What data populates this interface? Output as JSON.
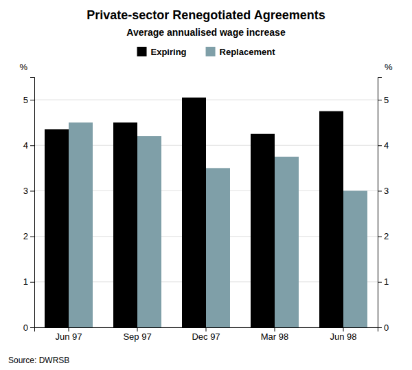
{
  "chart_data": {
    "type": "bar",
    "title": "Private-sector Renegotiated Agreements",
    "subtitle": "Average annualised wage increase",
    "source": "Source: DWRSB",
    "ylabel": "%",
    "y2label": "%",
    "categories": [
      "Jun 97",
      "Sep 97",
      "Dec 97",
      "Mar 98",
      "Jun 98"
    ],
    "series": [
      {
        "name": "Expiring",
        "color": "#000000",
        "values": [
          4.35,
          4.5,
          5.05,
          4.25,
          4.75
        ]
      },
      {
        "name": "Replacement",
        "color": "#7f9fa8",
        "values": [
          4.5,
          4.2,
          3.5,
          3.75,
          3.0
        ]
      }
    ],
    "ylim": [
      0,
      5.5
    ],
    "yticks": [
      0,
      1,
      2,
      3,
      4,
      5
    ],
    "y2lim": [
      0,
      5.5
    ],
    "y2ticks": [
      0,
      1,
      2,
      3,
      4,
      5
    ],
    "grid": true,
    "legend": "top"
  }
}
